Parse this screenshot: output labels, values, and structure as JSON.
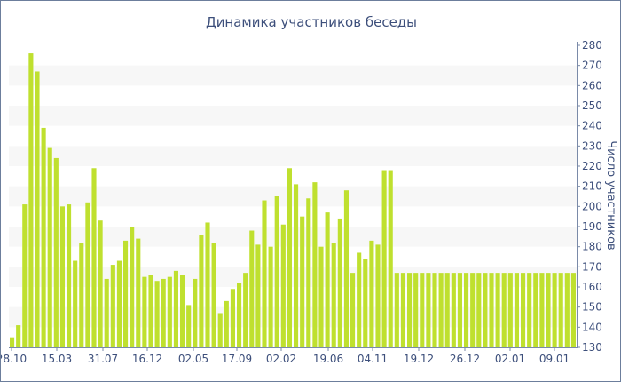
{
  "chart_data": {
    "type": "bar",
    "title": "Динамика участников беседы",
    "ylabel": "Число участников",
    "ylim": [
      130,
      280
    ],
    "yticks": [
      130,
      140,
      150,
      160,
      170,
      180,
      190,
      200,
      210,
      220,
      230,
      240,
      250,
      260,
      270,
      280
    ],
    "y_axis_side": "right",
    "grid": "alternating horizontal bands",
    "xtick_labels": [
      "28.10",
      "15.03",
      "31.07",
      "16.12",
      "02.05",
      "17.09",
      "02.02",
      "19.06",
      "04.11",
      "19.12",
      "26.12",
      "02.01",
      "09.01"
    ],
    "bar_color": "#bfe02f",
    "band_color": "#f7f7f7",
    "axis_text_color": "#3d4f7b",
    "values": [
      135,
      141,
      201,
      276,
      267,
      239,
      229,
      224,
      200,
      201,
      173,
      182,
      202,
      219,
      193,
      164,
      171,
      173,
      183,
      190,
      184,
      165,
      166,
      163,
      164,
      165,
      168,
      166,
      151,
      164,
      186,
      192,
      182,
      147,
      153,
      159,
      162,
      167,
      188,
      181,
      203,
      180,
      205,
      191,
      219,
      211,
      195,
      204,
      212,
      180,
      197,
      182,
      194,
      208,
      167,
      177,
      174,
      183,
      181,
      218,
      218,
      167,
      167,
      167,
      167,
      167,
      167,
      167,
      167,
      167,
      167,
      167,
      167,
      167,
      167,
      167,
      167,
      167,
      167,
      167,
      167,
      167,
      167,
      167,
      167,
      167,
      167,
      167,
      167,
      167
    ]
  }
}
